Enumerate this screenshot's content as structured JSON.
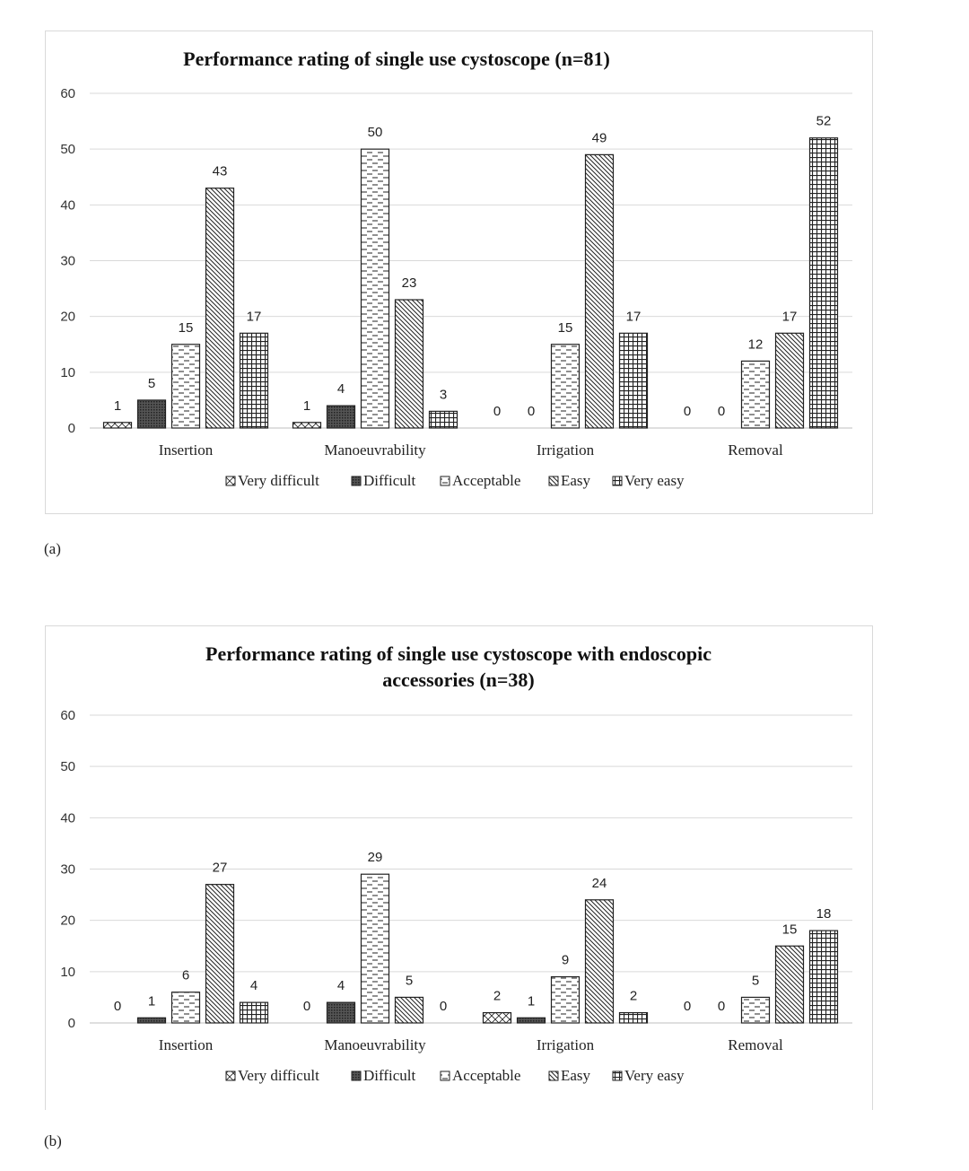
{
  "panels": {
    "a": {
      "label": "(a)"
    },
    "b": {
      "label": "(b)"
    }
  },
  "chart_data": [
    {
      "type": "bar",
      "title_lines": [
        "Performance rating of single use cystoscope (n=81)"
      ],
      "categories": [
        "Insertion",
        "Manoeuvrability",
        "Irrigation",
        "Removal"
      ],
      "series": [
        {
          "name": "Very difficult",
          "values": [
            1,
            1,
            0,
            0
          ],
          "pattern": "diag-cross"
        },
        {
          "name": "Difficult",
          "values": [
            5,
            4,
            0,
            0
          ],
          "pattern": "dense"
        },
        {
          "name": "Acceptable",
          "values": [
            15,
            50,
            15,
            12
          ],
          "pattern": "dashes"
        },
        {
          "name": "Easy",
          "values": [
            43,
            23,
            49,
            17
          ],
          "pattern": "diag"
        },
        {
          "name": "Very easy",
          "values": [
            17,
            3,
            17,
            52
          ],
          "pattern": "grid"
        }
      ],
      "yticks": [
        0,
        10,
        20,
        30,
        40,
        50,
        60
      ],
      "ylim": [
        0,
        60
      ],
      "grid": true,
      "legend": "bottom"
    },
    {
      "type": "bar",
      "title_lines": [
        "Performance rating of single use cystoscope with endoscopic",
        "accessories (n=38)"
      ],
      "categories": [
        "Insertion",
        "Manoeuvrability",
        "Irrigation",
        "Removal"
      ],
      "series": [
        {
          "name": "Very difficult",
          "values": [
            0,
            0,
            2,
            0
          ],
          "pattern": "diag-cross"
        },
        {
          "name": "Difficult",
          "values": [
            1,
            4,
            1,
            0
          ],
          "pattern": "dense"
        },
        {
          "name": "Acceptable",
          "values": [
            6,
            29,
            9,
            5
          ],
          "pattern": "dashes"
        },
        {
          "name": "Easy",
          "values": [
            27,
            5,
            24,
            15
          ],
          "pattern": "diag"
        },
        {
          "name": "Very easy",
          "values": [
            4,
            0,
            2,
            18
          ],
          "pattern": "grid"
        }
      ],
      "yticks": [
        0,
        10,
        20,
        30,
        40,
        50,
        60
      ],
      "ylim": [
        0,
        60
      ],
      "grid": true,
      "legend": "bottom"
    }
  ]
}
